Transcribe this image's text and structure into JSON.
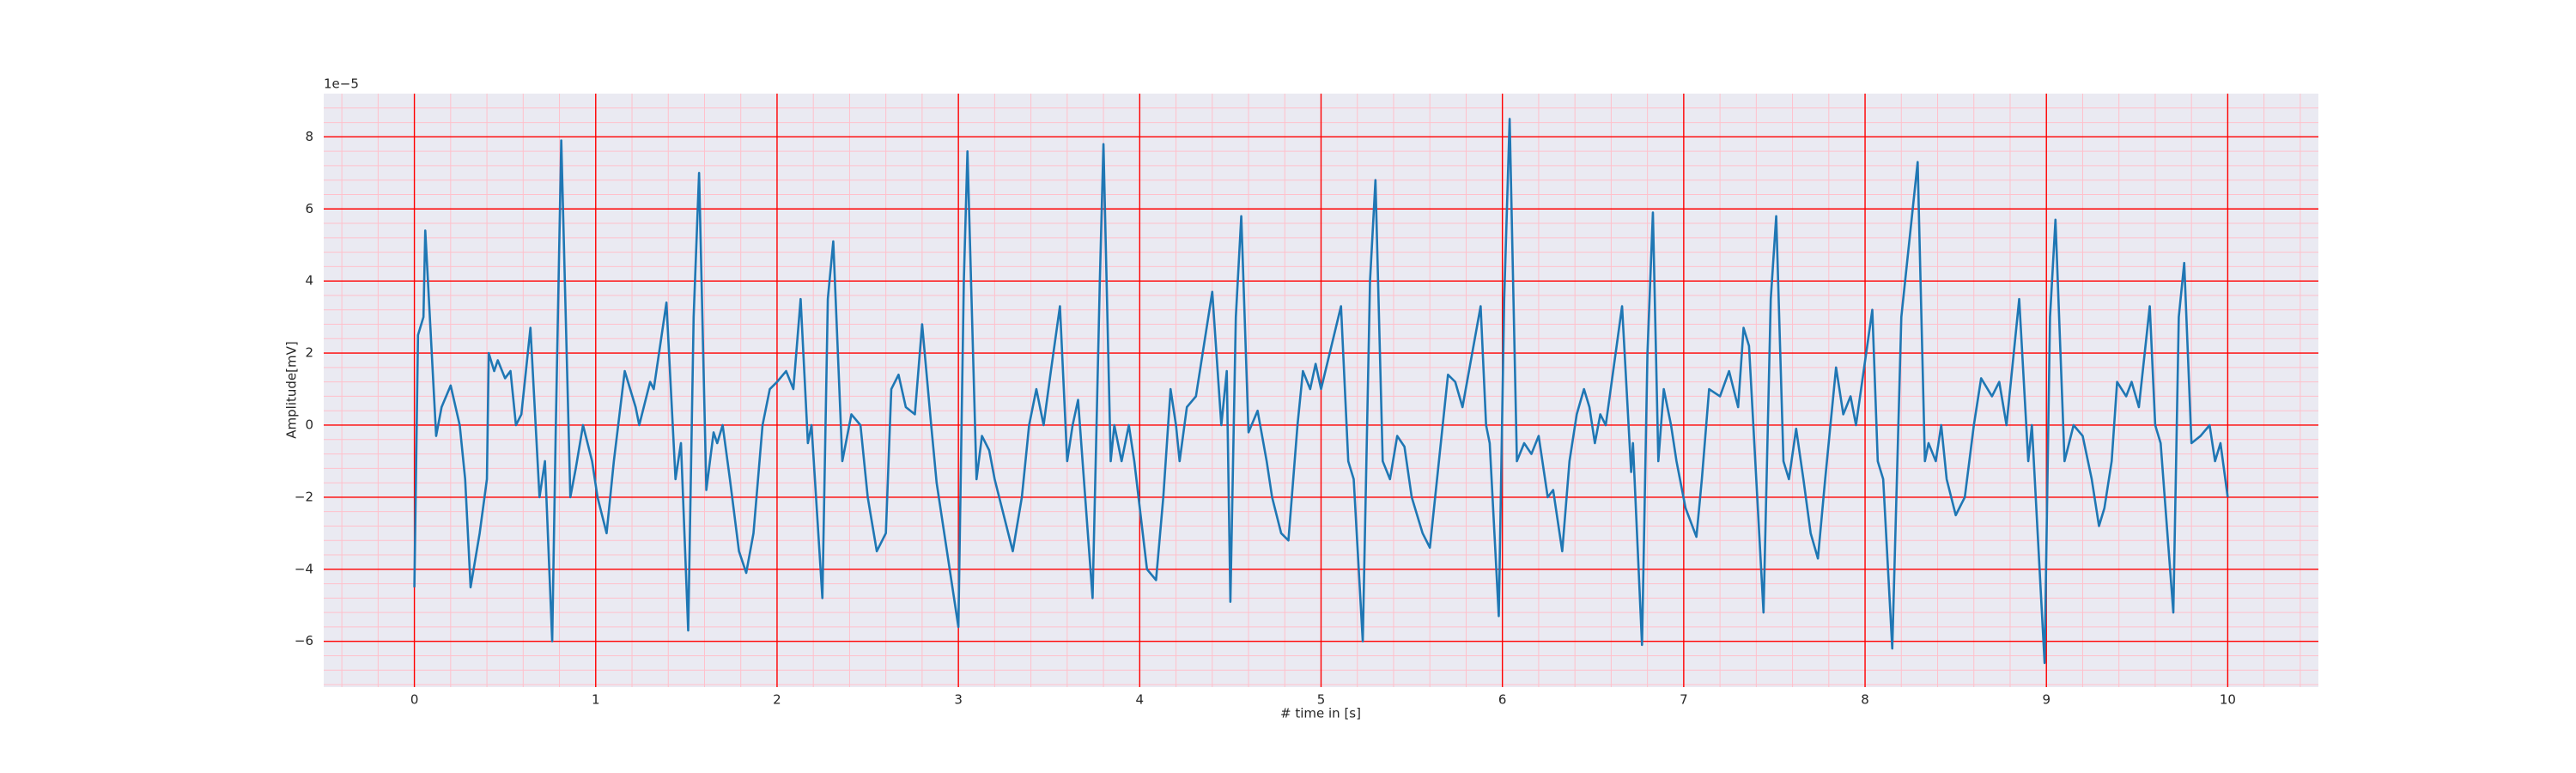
{
  "chart_data": {
    "type": "line",
    "xlabel": "# time in [s]",
    "ylabel": "Amplitude[mV]",
    "y_offset_label": "1e−5",
    "xlim": [
      -0.5,
      10.5
    ],
    "ylim": [
      -7.27,
      9.2
    ],
    "xticks": [
      0,
      1,
      2,
      3,
      4,
      5,
      6,
      7,
      8,
      9,
      10
    ],
    "yticks": [
      {
        "value": -6,
        "label": "−6"
      },
      {
        "value": -4,
        "label": "−4"
      },
      {
        "value": -2,
        "label": "−2"
      },
      0,
      2,
      4,
      6,
      8
    ],
    "grid": true,
    "minor_grid": true,
    "minor_divisions": 5,
    "grid_color": "#ff0000",
    "minor_grid_color": "#ffc0cb",
    "background": "#eaeaf2",
    "series": [
      {
        "color": "#1f77b4",
        "x": [
          0,
          0.02,
          0.05,
          0.06,
          0.12,
          0.15,
          0.2,
          0.25,
          0.28,
          0.31,
          0.36,
          0.4,
          0.41,
          0.44,
          0.46,
          0.5,
          0.53,
          0.56,
          0.59,
          0.64,
          0.69,
          0.72,
          0.76,
          0.78,
          0.81,
          0.86,
          0.89,
          0.93,
          0.98,
          1.01,
          1.06,
          1.1,
          1.16,
          1.22,
          1.24,
          1.3,
          1.32,
          1.39,
          1.44,
          1.47,
          1.51,
          1.54,
          1.57,
          1.61,
          1.65,
          1.67,
          1.7,
          1.74,
          1.79,
          1.83,
          1.87,
          1.92,
          1.96,
          2.0,
          2.05,
          2.09,
          2.13,
          2.17,
          2.19,
          2.25,
          2.28,
          2.31,
          2.36,
          2.41,
          2.46,
          2.5,
          2.55,
          2.6,
          2.63,
          2.67,
          2.71,
          2.76,
          2.8,
          2.85,
          2.88,
          3.0,
          3.03,
          3.05,
          3.1,
          3.13,
          3.17,
          3.2,
          3.25,
          3.3,
          3.35,
          3.39,
          3.43,
          3.47,
          3.51,
          3.56,
          3.6,
          3.63,
          3.66,
          3.74,
          3.78,
          3.8,
          3.84,
          3.86,
          3.9,
          3.94,
          3.97,
          4.04,
          4.09,
          4.13,
          4.17,
          4.2,
          4.22,
          4.26,
          4.31,
          4.4,
          4.45,
          4.48,
          4.5,
          4.53,
          4.56,
          4.6,
          4.65,
          4.7,
          4.73,
          4.78,
          4.82,
          4.87,
          4.9,
          4.94,
          4.97,
          5.0,
          5.11,
          5.15,
          5.18,
          5.23,
          5.27,
          5.3,
          5.34,
          5.38,
          5.42,
          5.46,
          5.5,
          5.56,
          5.6,
          5.65,
          5.7,
          5.74,
          5.78,
          5.88,
          5.91,
          5.93,
          5.98,
          6.01,
          6.04,
          6.08,
          6.12,
          6.16,
          6.2,
          6.25,
          6.28,
          6.33,
          6.37,
          6.41,
          6.45,
          6.48,
          6.51,
          6.54,
          6.57,
          6.66,
          6.71,
          6.72,
          6.77,
          6.8,
          6.83,
          6.86,
          6.89,
          6.93,
          6.96,
          7.01,
          7.07,
          7.1,
          7.14,
          7.2,
          7.25,
          7.3,
          7.33,
          7.36,
          7.4,
          7.44,
          7.48,
          7.51,
          7.55,
          7.58,
          7.62,
          7.66,
          7.7,
          7.74,
          7.78,
          7.84,
          7.88,
          7.92,
          7.95,
          8.04,
          8.07,
          8.1,
          8.15,
          8.2,
          8.29,
          8.33,
          8.35,
          8.39,
          8.42,
          8.45,
          8.5,
          8.55,
          8.6,
          8.64,
          8.7,
          8.74,
          8.78,
          8.85,
          8.9,
          8.92,
          8.99,
          9.02,
          9.05,
          9.1,
          9.15,
          9.2,
          9.25,
          9.29,
          9.32,
          9.36,
          9.39,
          9.44,
          9.47,
          9.51,
          9.57,
          9.6,
          9.63,
          9.7,
          9.73,
          9.76,
          9.8,
          9.85,
          9.9,
          9.93,
          9.96,
          10
        ],
        "values": [
          -4.5,
          2.5,
          3,
          5.4,
          -0.3,
          0.5,
          1.1,
          0,
          -1.5,
          -4.5,
          -3,
          -1.5,
          2,
          1.5,
          1.8,
          1.3,
          1.5,
          0,
          0.3,
          2.7,
          -2,
          -1,
          -6,
          0,
          7.9,
          -2,
          -1.2,
          0,
          -1,
          -2,
          -3,
          -1,
          1.5,
          0.5,
          0,
          1.2,
          1,
          3.4,
          -1.5,
          -0.5,
          -5.7,
          3,
          7,
          -1.8,
          -0.2,
          -0.5,
          0,
          -1.5,
          -3.5,
          -4.1,
          -3,
          0,
          1,
          1.2,
          1.5,
          1,
          3.5,
          -0.5,
          0,
          -4.8,
          3.5,
          5.1,
          -1,
          0.3,
          0,
          -2,
          -3.5,
          -3,
          1,
          1.4,
          0.5,
          0.3,
          2.8,
          0,
          -1.6,
          -5.6,
          4,
          7.6,
          -1.5,
          -0.3,
          -0.7,
          -1.5,
          -2.5,
          -3.5,
          -2,
          0,
          1,
          0,
          1.5,
          3.3,
          -1,
          0,
          0.7,
          -4.8,
          4,
          7.8,
          -1,
          0,
          -1,
          0,
          -1,
          -4,
          -4.3,
          -2,
          1,
          0,
          -1,
          0.5,
          0.8,
          3.7,
          0,
          1.5,
          -4.9,
          3,
          5.8,
          -0.2,
          0.4,
          -1,
          -2,
          -3,
          -3.2,
          0,
          1.5,
          1,
          1.7,
          1,
          3.3,
          -1,
          -1.5,
          -6,
          4,
          6.8,
          -1,
          -1.5,
          -0.3,
          -0.6,
          -2,
          -3,
          -3.4,
          -1,
          1.4,
          1.2,
          0.5,
          3.3,
          0,
          -0.5,
          -5.3,
          3.5,
          8.5,
          -1,
          -0.5,
          -0.8,
          -0.3,
          -2,
          -1.8,
          -3.5,
          -1,
          0.3,
          1,
          0.5,
          -0.5,
          0.3,
          0,
          3.3,
          -1.3,
          -0.5,
          -6.1,
          2,
          5.9,
          -1,
          1,
          0,
          -1,
          -2.3,
          -3.1,
          -1.5,
          1,
          0.8,
          1.5,
          0.5,
          2.7,
          2.2,
          -1.5,
          -5.2,
          3.5,
          5.8,
          -1,
          -1.5,
          -0.1,
          -1.5,
          -3,
          -3.7,
          -1.5,
          1.6,
          0.3,
          0.8,
          0,
          3.2,
          -1,
          -1.5,
          -6.2,
          3,
          7.3,
          -1,
          -0.5,
          -1,
          0,
          -1.5,
          -2.5,
          -2,
          0,
          1.3,
          0.8,
          1.2,
          0,
          3.5,
          -1,
          0,
          -6.6,
          3,
          5.7,
          -1,
          0,
          -0.3,
          -1.5,
          -2.8,
          -2.3,
          -1,
          1.2,
          0.8,
          1.2,
          0.5,
          3.3,
          0,
          -0.5,
          -5.2,
          3,
          4.5,
          -0.5,
          -0.3,
          0,
          -1,
          -0.5,
          -2
        ]
      }
    ]
  }
}
